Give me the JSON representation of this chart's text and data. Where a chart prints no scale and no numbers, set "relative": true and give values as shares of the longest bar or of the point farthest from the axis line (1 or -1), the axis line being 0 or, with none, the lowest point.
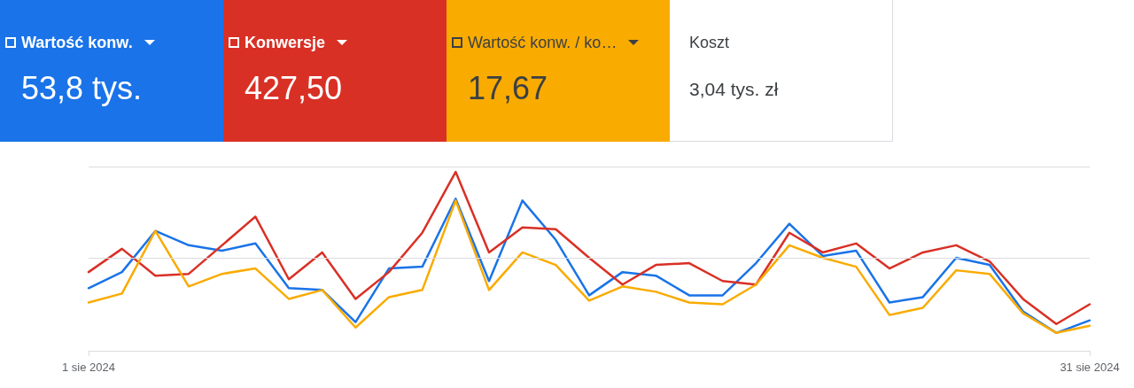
{
  "chart_data": {
    "type": "line",
    "relative": true,
    "legend": "top left",
    "marker": "none",
    "ref_lines": [
      {
        "axis": "y",
        "value": 0.515,
        "color": "#dadce0"
      },
      {
        "axis": "y",
        "value": 1.03,
        "color": "#dadce0"
      }
    ],
    "categories": [
      "1 sie 2024",
      null,
      null,
      null,
      null,
      null,
      null,
      null,
      null,
      null,
      null,
      null,
      null,
      null,
      null,
      null,
      null,
      null,
      null,
      null,
      null,
      null,
      null,
      null,
      null,
      null,
      null,
      null,
      null,
      null,
      "31 sie 2024"
    ],
    "series": [
      {
        "name": "Wartość konw.",
        "color": "#1a73e8",
        "values": [
          0.35,
          0.44,
          0.67,
          0.59,
          0.56,
          0.6,
          0.35,
          0.34,
          0.16,
          0.46,
          0.47,
          0.85,
          0.39,
          0.84,
          0.62,
          0.31,
          0.44,
          0.42,
          0.31,
          0.31,
          0.49,
          0.71,
          0.53,
          0.56,
          0.27,
          0.3,
          0.52,
          0.48,
          0.22,
          0.1,
          0.17
        ]
      },
      {
        "name": "Konwersje",
        "color": "#d93025",
        "values": [
          0.44,
          0.57,
          0.42,
          0.43,
          0.59,
          0.75,
          0.4,
          0.55,
          0.29,
          0.44,
          0.66,
          1,
          0.55,
          0.69,
          0.68,
          0.52,
          0.37,
          0.48,
          0.49,
          0.39,
          0.37,
          0.66,
          0.55,
          0.6,
          0.46,
          0.55,
          0.59,
          0.5,
          0.29,
          0.15,
          0.26
        ]
      },
      {
        "name": "Wartość konw. / ko…",
        "color": "#f9ab00",
        "values": [
          0.27,
          0.32,
          0.67,
          0.36,
          0.43,
          0.46,
          0.29,
          0.34,
          0.13,
          0.3,
          0.34,
          0.84,
          0.34,
          0.55,
          0.48,
          0.28,
          0.36,
          0.33,
          0.27,
          0.26,
          0.37,
          0.59,
          0.52,
          0.47,
          0.2,
          0.24,
          0.45,
          0.43,
          0.21,
          0.1,
          0.14
        ]
      }
    ],
    "annotations": [
      "53,8 tys.",
      "427,50",
      "17,67",
      "Koszt",
      "3,04 tys. zł"
    ]
  }
}
